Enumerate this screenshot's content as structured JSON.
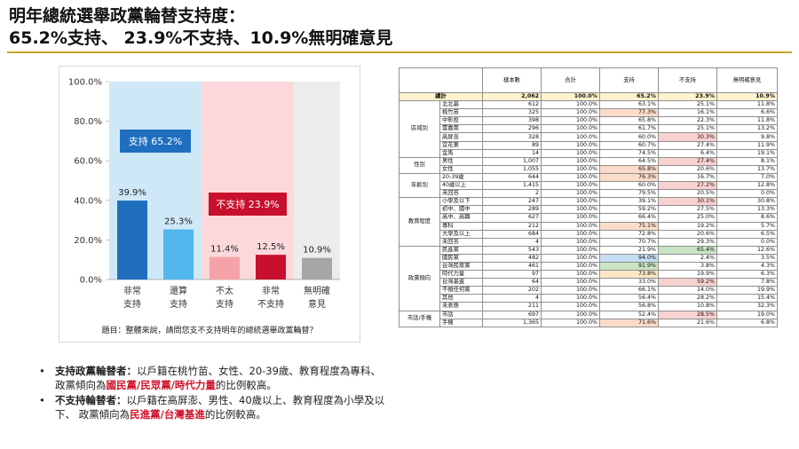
{
  "title_line1": "明年總統選舉政黨輪替支持度：",
  "title_line2": "65.2%支持、 23.9%不支持、10.9%無明確意見",
  "chart_data": {
    "type": "bar",
    "categories": [
      [
        "非常",
        "支持"
      ],
      [
        "還算",
        "支持"
      ],
      [
        "不太",
        "支持"
      ],
      [
        "非常",
        "不支持"
      ],
      [
        "無明確",
        "意見"
      ]
    ],
    "values": [
      39.9,
      25.3,
      11.4,
      12.5,
      10.9
    ],
    "value_labels": [
      "39.9%",
      "25.3%",
      "11.4%",
      "12.5%",
      "10.9%"
    ],
    "bar_colors": [
      "#1f6fbe",
      "#52b6ee",
      "#f5a3a8",
      "#c8102e",
      "#a6a6a6"
    ],
    "groups": [
      {
        "label": "支持 65.2%",
        "color": "#cfe8f8",
        "label_bg": "#1f6fbe",
        "from": 0,
        "to": 1
      },
      {
        "label": "不支持 23.9%",
        "color": "#fbd8db",
        "label_bg": "#c8102e",
        "from": 2,
        "to": 3
      },
      {
        "label": "",
        "color": "#ececec",
        "label_bg": "",
        "from": 4,
        "to": 4
      }
    ],
    "ylim": [
      0,
      100
    ],
    "yticks": [
      "0.0%",
      "20.0%",
      "40.0%",
      "60.0%",
      "80.0%",
      "100.0%"
    ],
    "ytick_values": [
      0,
      20,
      40,
      60,
      80,
      100
    ],
    "caption": "題目：整體來說，請問您支不支持明年的總統選舉政黨輪替？"
  },
  "bullets": [
    {
      "head": "支持政黨輪替者：",
      "text": "以戶籍在桃竹苗、女性、20-39歲、教育程度為專科、 政黨傾向為",
      "highlight": "國民黨/民眾黨/時代力量",
      "tail": "的比例較高。"
    },
    {
      "head": "不支持輪替者：",
      "text": "以戶籍在高屏澎、男性、40歲以上、教育程度為小學及以下、 政黨傾向為",
      "highlight": "民進黨/台灣基進",
      "tail": "的比例較高。"
    }
  ],
  "table": {
    "headers": [
      "",
      "",
      "樣本數",
      "合計",
      "支持",
      "不支持",
      "無明確意見"
    ],
    "total": {
      "label": "總計",
      "n": "2,062",
      "sum": "100.0%",
      "s": "65.2%",
      "ns": "23.9%",
      "na": "10.9%"
    },
    "groups": [
      {
        "name": "區域別",
        "rows": [
          {
            "label": "北北基",
            "n": "612",
            "sum": "100.0%",
            "s": "63.1%",
            "ns": "25.1%",
            "na": "11.8%",
            "hs": "",
            "hns": ""
          },
          {
            "label": "桃竹苗",
            "n": "325",
            "sum": "100.0%",
            "s": "77.3%",
            "ns": "16.1%",
            "na": "6.6%",
            "hs": "o",
            "hns": ""
          },
          {
            "label": "中彰投",
            "n": "398",
            "sum": "100.0%",
            "s": "65.8%",
            "ns": "22.3%",
            "na": "11.8%",
            "hs": "",
            "hns": ""
          },
          {
            "label": "雲嘉南",
            "n": "296",
            "sum": "100.0%",
            "s": "61.7%",
            "ns": "25.1%",
            "na": "13.2%",
            "hs": "",
            "hns": ""
          },
          {
            "label": "高屏澎",
            "n": "328",
            "sum": "100.0%",
            "s": "60.0%",
            "ns": "30.3%",
            "na": "9.8%",
            "hs": "",
            "hns": "r"
          },
          {
            "label": "宜花東",
            "n": "89",
            "sum": "100.0%",
            "s": "60.7%",
            "ns": "27.4%",
            "na": "11.9%",
            "hs": "",
            "hns": ""
          },
          {
            "label": "金馬",
            "n": "14",
            "sum": "100.0%",
            "s": "74.5%",
            "ns": "6.4%",
            "na": "19.1%",
            "hs": "",
            "hns": ""
          }
        ]
      },
      {
        "name": "性別",
        "rows": [
          {
            "label": "男性",
            "n": "1,007",
            "sum": "100.0%",
            "s": "64.5%",
            "ns": "27.4%",
            "na": "8.1%",
            "hs": "",
            "hns": "r"
          },
          {
            "label": "女性",
            "n": "1,055",
            "sum": "100.0%",
            "s": "65.8%",
            "ns": "20.6%",
            "na": "13.7%",
            "hs": "o",
            "hns": ""
          }
        ]
      },
      {
        "name": "年齡別",
        "rows": [
          {
            "label": "20-39歲",
            "n": "644",
            "sum": "100.0%",
            "s": "76.3%",
            "ns": "16.7%",
            "na": "7.0%",
            "hs": "o",
            "hns": ""
          },
          {
            "label": "40歲以上",
            "n": "1,415",
            "sum": "100.0%",
            "s": "60.0%",
            "ns": "27.2%",
            "na": "12.8%",
            "hs": "",
            "hns": "r"
          },
          {
            "label": "未回答",
            "n": "2",
            "sum": "100.0%",
            "s": "79.5%",
            "ns": "20.5%",
            "na": "0.0%",
            "hs": "",
            "hns": ""
          }
        ]
      },
      {
        "name": "教育程度",
        "rows": [
          {
            "label": "小學及以下",
            "n": "247",
            "sum": "100.0%",
            "s": "39.1%",
            "ns": "30.1%",
            "na": "30.8%",
            "hs": "",
            "hns": "r"
          },
          {
            "label": "初中、國中",
            "n": "289",
            "sum": "100.0%",
            "s": "59.2%",
            "ns": "27.5%",
            "na": "13.3%",
            "hs": "",
            "hns": ""
          },
          {
            "label": "高中、高職",
            "n": "627",
            "sum": "100.0%",
            "s": "66.4%",
            "ns": "25.0%",
            "na": "8.6%",
            "hs": "",
            "hns": ""
          },
          {
            "label": "專科",
            "n": "212",
            "sum": "100.0%",
            "s": "75.1%",
            "ns": "19.2%",
            "na": "5.7%",
            "hs": "o",
            "hns": ""
          },
          {
            "label": "大學及以上",
            "n": "684",
            "sum": "100.0%",
            "s": "72.8%",
            "ns": "20.6%",
            "na": "6.5%",
            "hs": "",
            "hns": ""
          },
          {
            "label": "未回答",
            "n": "4",
            "sum": "100.0%",
            "s": "70.7%",
            "ns": "29.3%",
            "na": "0.0%",
            "hs": "",
            "hns": ""
          }
        ]
      },
      {
        "name": "政黨傾向",
        "rows": [
          {
            "label": "民進黨",
            "n": "543",
            "sum": "100.0%",
            "s": "21.9%",
            "ns": "65.4%",
            "na": "12.6%",
            "hs": "",
            "hns": "g"
          },
          {
            "label": "國民黨",
            "n": "482",
            "sum": "100.0%",
            "s": "94.0%",
            "ns": "2.4%",
            "na": "3.5%",
            "hs": "b",
            "hns": ""
          },
          {
            "label": "台灣民眾黨",
            "n": "461",
            "sum": "100.0%",
            "s": "91.9%",
            "ns": "3.8%",
            "na": "4.3%",
            "hs": "g",
            "hns": ""
          },
          {
            "label": "時代力量",
            "n": "97",
            "sum": "100.0%",
            "s": "73.8%",
            "ns": "19.9%",
            "na": "6.3%",
            "hs": "y",
            "hns": ""
          },
          {
            "label": "台灣基進",
            "n": "64",
            "sum": "100.0%",
            "s": "33.0%",
            "ns": "59.2%",
            "na": "7.8%",
            "hs": "",
            "hns": "r"
          },
          {
            "label": "不傾任何黨",
            "n": "202",
            "sum": "100.0%",
            "s": "66.1%",
            "ns": "14.0%",
            "na": "19.9%",
            "hs": "",
            "hns": ""
          },
          {
            "label": "其他",
            "n": "4",
            "sum": "100.0%",
            "s": "56.4%",
            "ns": "28.2%",
            "na": "15.4%",
            "hs": "",
            "hns": ""
          },
          {
            "label": "未表態",
            "n": "211",
            "sum": "100.0%",
            "s": "56.8%",
            "ns": "10.8%",
            "na": "32.3%",
            "hs": "",
            "hns": ""
          }
        ]
      },
      {
        "name": "市話/手機",
        "rows": [
          {
            "label": "市話",
            "n": "697",
            "sum": "100.0%",
            "s": "52.4%",
            "ns": "28.5%",
            "na": "19.0%",
            "hs": "",
            "hns": "r"
          },
          {
            "label": "手機",
            "n": "1,365",
            "sum": "100.0%",
            "s": "71.6%",
            "ns": "21.6%",
            "na": "6.8%",
            "hs": "o",
            "hns": ""
          }
        ]
      }
    ]
  }
}
